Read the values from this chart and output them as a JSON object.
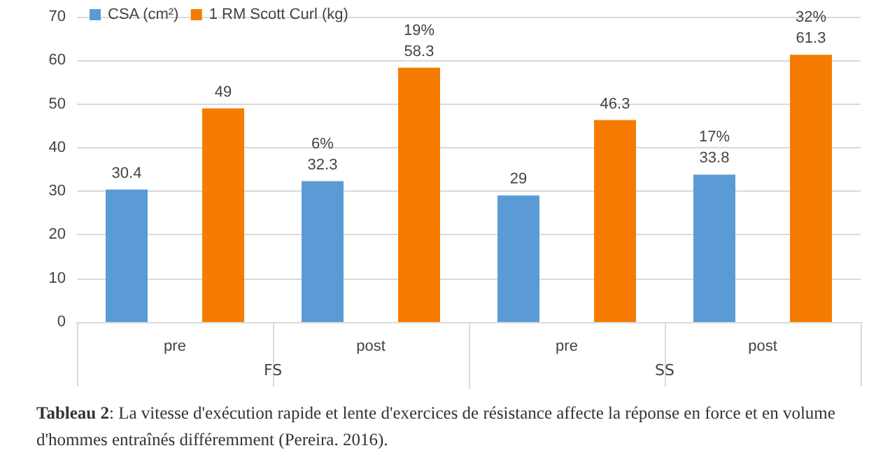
{
  "chart_data": {
    "type": "bar",
    "categories": [
      "pre",
      "post",
      "pre",
      "post"
    ],
    "series": [
      {
        "name": "CSA (cm²)",
        "color": "#5b9bd5",
        "values": [
          30.4,
          32.3,
          29,
          33.8
        ],
        "value_labels": [
          "30.4",
          "6%\n32.3",
          "29",
          "17%\n33.8"
        ]
      },
      {
        "name": "1 RM Scott Curl (kg)",
        "color": "#f57c00",
        "values": [
          49,
          58.3,
          46.3,
          61.3
        ],
        "value_labels": [
          "49",
          "19%\n58.3",
          "46.3",
          "32%\n61.3"
        ]
      }
    ],
    "ylim": [
      0,
      70
    ],
    "yticks": [
      0,
      10,
      20,
      30,
      40,
      50,
      60,
      70
    ],
    "grid": "y",
    "legend": "top left",
    "annotations": [
      "FS",
      "SS",
      "Tableau 2: La vitesse d'exécution rapide et lente d'exercices de résistance affecte la réponse en force et en volume d'hommes entraînés différemment (Pereira. 2016)."
    ]
  }
}
